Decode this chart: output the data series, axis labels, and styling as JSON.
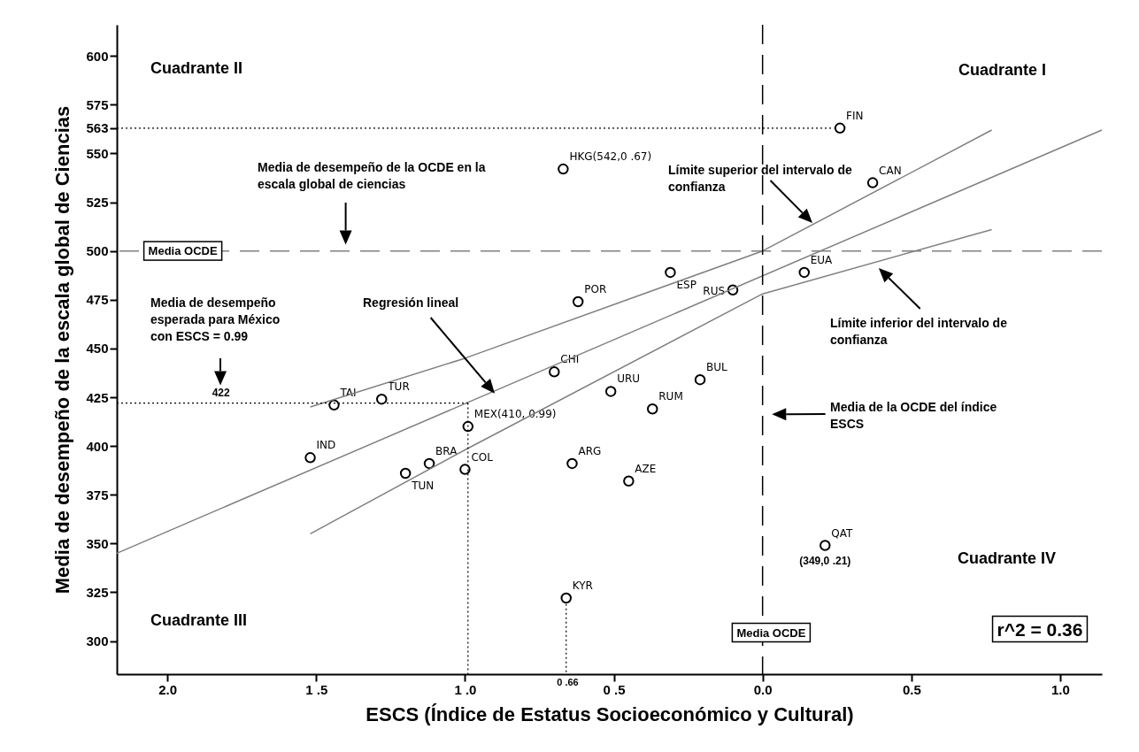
{
  "chart_data": {
    "type": "scatter",
    "xlabel": "ESCS (Índice de Estatus Socioeconómico y Cultural)",
    "ylabel": "Media de desempeño de la escala global de Ciencias",
    "xlim": [
      -2.17,
      1.14
    ],
    "xticks": [
      {
        "value": -2,
        "label": "2.0"
      },
      {
        "value": -1.5,
        "label": "1 .5"
      },
      {
        "value": -1,
        "label": "1 .0"
      },
      {
        "value": -0.5,
        "label": "0 .5"
      },
      {
        "value": 0,
        "label": "0.0"
      },
      {
        "value": 0.5,
        "label": "0.5"
      },
      {
        "value": 1,
        "label": "1.0"
      }
    ],
    "ylim": [
      283,
      616
    ],
    "yticks": [
      300,
      325,
      350,
      375,
      400,
      425,
      450,
      475,
      500,
      525,
      550,
      563,
      575,
      600
    ],
    "grid": false,
    "series": [
      {
        "marker": "circle",
        "color": "#000000",
        "x": [
          0.26,
          -0.67,
          0.37,
          0.14,
          -0.62,
          -0.31,
          -0.1,
          -0.7,
          -0.21,
          -0.51,
          -0.37,
          -1.44,
          -1.28,
          -0.99,
          -1.52,
          -1.12,
          -1.2,
          -1.0,
          -0.64,
          -0.45,
          0.21,
          -0.66
        ],
        "values": [
          563,
          542,
          535,
          489,
          474,
          489,
          480,
          438,
          434,
          428,
          419,
          421,
          424,
          410,
          394,
          391,
          386,
          388,
          391,
          382,
          349,
          322
        ],
        "value_labels": [
          "FIN",
          "HKG(542,0 .67)",
          "CAN",
          "EUA",
          "POR",
          "ESP",
          "RUS",
          "CHI",
          "BUL",
          "URU",
          "RUM",
          "TAI",
          "TUR",
          "MEX(410, 0.99)",
          "IND",
          "BRA",
          "TUN",
          "COL",
          "ARG",
          "AZE",
          "QAT",
          "KYR"
        ]
      },
      {
        "type": "line",
        "color": "#808080",
        "x": [
          -2.17,
          1.14
        ],
        "values": [
          345,
          562
        ]
      },
      {
        "type": "line",
        "color": "#808080",
        "x": [
          -1.52,
          -1.0,
          0,
          0.77
        ],
        "values": [
          420,
          445,
          500,
          562
        ]
      },
      {
        "type": "line",
        "color": "#808080",
        "x": [
          -1.52,
          -1.0,
          0,
          0.77
        ],
        "values": [
          355,
          398,
          478,
          511
        ]
      },
      {
        "type": "line",
        "color": "#000000",
        "line_style": "dotted",
        "x": [
          -2.17,
          0.24
        ],
        "values": [
          563,
          563
        ]
      },
      {
        "type": "line",
        "color": "#000000",
        "line_style": "dotted",
        "x": [
          -2.17,
          -0.99
        ],
        "values": [
          422,
          422
        ]
      },
      {
        "type": "line",
        "color": "#000000",
        "line_style": "dotted",
        "x": [
          -0.99,
          -0.99
        ],
        "values": [
          422,
          283
        ]
      },
      {
        "type": "line",
        "color": "#000000",
        "line_style": "dotted",
        "x": [
          -0.66,
          -0.66
        ],
        "values": [
          319,
          283
        ]
      }
    ],
    "ref_lines": [
      {
        "axis": "y",
        "value": 500,
        "label": "Media OCDE",
        "color": "#808080",
        "line_style": "dashed"
      },
      {
        "axis": "x",
        "value": 0,
        "label": "Media OCDE",
        "color": "#000000",
        "line_style": "dashed"
      }
    ],
    "annotations": [
      "Media de desempeño de la OCDE en la escala global de ciencias",
      "Regresión lineal",
      "Límite superior del intervalo de confianza",
      "Límite inferior del intervalo de confianza",
      "Media de la OCDE del índice ESCS",
      "Media de desempeño esperada para México con ESCS =  0.99",
      {
        "text": "422",
        "x": -1.82,
        "y": 422
      },
      "0 .66",
      {
        "text": "(349,0 .21)",
        "x": 0.21,
        "y": 349
      },
      "Cuadrante I",
      "Cuadrante II",
      "Cuadrante III",
      "Cuadrante IV",
      "r^2 = 0.36"
    ]
  }
}
